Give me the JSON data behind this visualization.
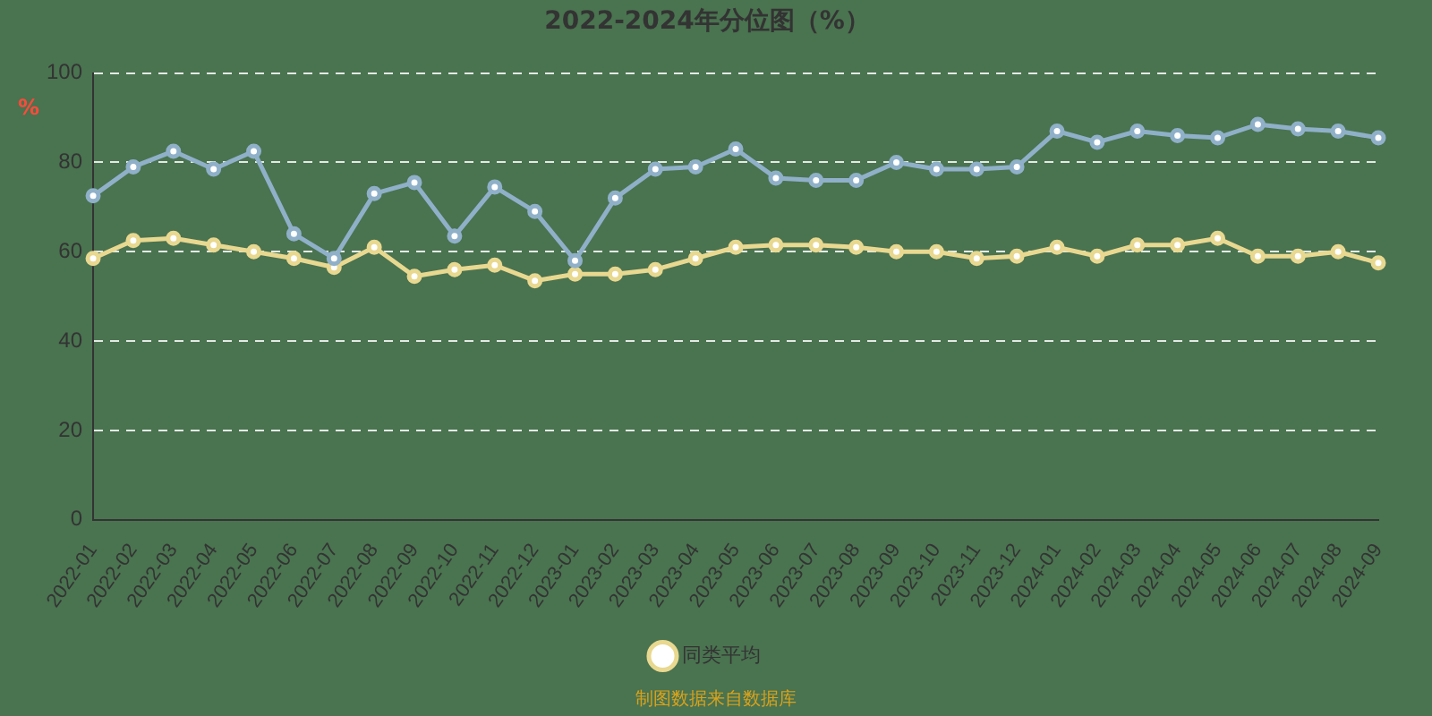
{
  "chart_data": {
    "type": "line",
    "title": "2022-2024年分位图（%）",
    "ylabel": "%",
    "categories": [
      "2022-01",
      "2022-02",
      "2022-03",
      "2022-04",
      "2022-05",
      "2022-06",
      "2022-07",
      "2022-08",
      "2022-09",
      "2022-10",
      "2022-11",
      "2022-12",
      "2023-01",
      "2023-02",
      "2023-03",
      "2023-04",
      "2023-05",
      "2023-06",
      "2023-07",
      "2023-08",
      "2023-09",
      "2023-10",
      "2023-11",
      "2023-12",
      "2024-01",
      "2024-02",
      "2024-03",
      "2024-04",
      "2024-05",
      "2024-06",
      "2024-07",
      "2024-08",
      "2024-09"
    ],
    "series": [
      {
        "color": "#8fb0c8",
        "values": [
          72.5,
          79,
          82.5,
          78.5,
          82.5,
          64,
          58.5,
          73,
          75.5,
          63.5,
          74.5,
          69,
          58,
          72,
          78.5,
          79,
          83,
          76.5,
          76,
          76,
          80,
          78.5,
          78.5,
          79,
          87,
          84.5,
          87,
          86,
          85.5,
          88.5,
          87.5,
          87,
          85.5
        ]
      },
      {
        "name": "同类平均",
        "color": "#e8d890",
        "values": [
          58.5,
          62.5,
          63,
          61.5,
          60,
          58.5,
          56.5,
          61,
          54.5,
          56,
          57,
          53.5,
          55,
          55,
          56,
          58.5,
          61,
          61.5,
          61.5,
          61,
          60,
          60,
          58.5,
          59,
          61,
          59,
          61.5,
          61.5,
          63,
          59,
          59,
          60,
          57.5
        ]
      }
    ],
    "ylim": [
      0,
      100
    ],
    "yticks": [
      0,
      20,
      40,
      60,
      80,
      100
    ],
    "grid": "y",
    "legend": "bottom",
    "marker": "circle",
    "line_style": "solid",
    "annotations": [
      "制图数据来自数据库"
    ]
  }
}
